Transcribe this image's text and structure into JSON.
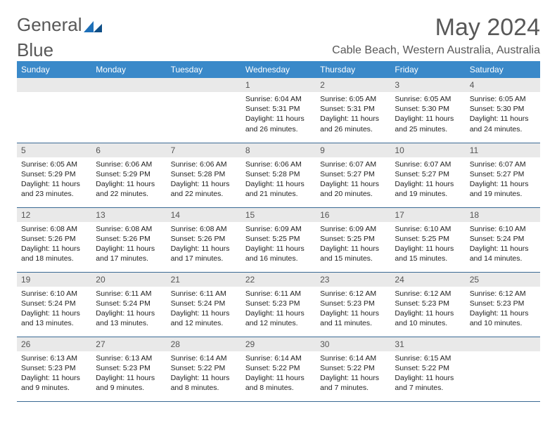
{
  "brand": {
    "part1": "General",
    "part2": "Blue"
  },
  "colors": {
    "header_bg": "#3a89c9",
    "header_text": "#ffffff",
    "daynum_bg": "#e9e9e9",
    "border": "#3a6a94",
    "title_color": "#585858",
    "logo_blue": "#1d6fb8"
  },
  "title": "May 2024",
  "location": "Cable Beach, Western Australia, Australia",
  "weekdays": [
    "Sunday",
    "Monday",
    "Tuesday",
    "Wednesday",
    "Thursday",
    "Friday",
    "Saturday"
  ],
  "weeks": [
    [
      null,
      null,
      null,
      {
        "day": "1",
        "sunrise": "Sunrise: 6:04 AM",
        "sunset": "Sunset: 5:31 PM",
        "daylight": "Daylight: 11 hours and 26 minutes."
      },
      {
        "day": "2",
        "sunrise": "Sunrise: 6:05 AM",
        "sunset": "Sunset: 5:31 PM",
        "daylight": "Daylight: 11 hours and 26 minutes."
      },
      {
        "day": "3",
        "sunrise": "Sunrise: 6:05 AM",
        "sunset": "Sunset: 5:30 PM",
        "daylight": "Daylight: 11 hours and 25 minutes."
      },
      {
        "day": "4",
        "sunrise": "Sunrise: 6:05 AM",
        "sunset": "Sunset: 5:30 PM",
        "daylight": "Daylight: 11 hours and 24 minutes."
      }
    ],
    [
      {
        "day": "5",
        "sunrise": "Sunrise: 6:05 AM",
        "sunset": "Sunset: 5:29 PM",
        "daylight": "Daylight: 11 hours and 23 minutes."
      },
      {
        "day": "6",
        "sunrise": "Sunrise: 6:06 AM",
        "sunset": "Sunset: 5:29 PM",
        "daylight": "Daylight: 11 hours and 22 minutes."
      },
      {
        "day": "7",
        "sunrise": "Sunrise: 6:06 AM",
        "sunset": "Sunset: 5:28 PM",
        "daylight": "Daylight: 11 hours and 22 minutes."
      },
      {
        "day": "8",
        "sunrise": "Sunrise: 6:06 AM",
        "sunset": "Sunset: 5:28 PM",
        "daylight": "Daylight: 11 hours and 21 minutes."
      },
      {
        "day": "9",
        "sunrise": "Sunrise: 6:07 AM",
        "sunset": "Sunset: 5:27 PM",
        "daylight": "Daylight: 11 hours and 20 minutes."
      },
      {
        "day": "10",
        "sunrise": "Sunrise: 6:07 AM",
        "sunset": "Sunset: 5:27 PM",
        "daylight": "Daylight: 11 hours and 19 minutes."
      },
      {
        "day": "11",
        "sunrise": "Sunrise: 6:07 AM",
        "sunset": "Sunset: 5:27 PM",
        "daylight": "Daylight: 11 hours and 19 minutes."
      }
    ],
    [
      {
        "day": "12",
        "sunrise": "Sunrise: 6:08 AM",
        "sunset": "Sunset: 5:26 PM",
        "daylight": "Daylight: 11 hours and 18 minutes."
      },
      {
        "day": "13",
        "sunrise": "Sunrise: 6:08 AM",
        "sunset": "Sunset: 5:26 PM",
        "daylight": "Daylight: 11 hours and 17 minutes."
      },
      {
        "day": "14",
        "sunrise": "Sunrise: 6:08 AM",
        "sunset": "Sunset: 5:26 PM",
        "daylight": "Daylight: 11 hours and 17 minutes."
      },
      {
        "day": "15",
        "sunrise": "Sunrise: 6:09 AM",
        "sunset": "Sunset: 5:25 PM",
        "daylight": "Daylight: 11 hours and 16 minutes."
      },
      {
        "day": "16",
        "sunrise": "Sunrise: 6:09 AM",
        "sunset": "Sunset: 5:25 PM",
        "daylight": "Daylight: 11 hours and 15 minutes."
      },
      {
        "day": "17",
        "sunrise": "Sunrise: 6:10 AM",
        "sunset": "Sunset: 5:25 PM",
        "daylight": "Daylight: 11 hours and 15 minutes."
      },
      {
        "day": "18",
        "sunrise": "Sunrise: 6:10 AM",
        "sunset": "Sunset: 5:24 PM",
        "daylight": "Daylight: 11 hours and 14 minutes."
      }
    ],
    [
      {
        "day": "19",
        "sunrise": "Sunrise: 6:10 AM",
        "sunset": "Sunset: 5:24 PM",
        "daylight": "Daylight: 11 hours and 13 minutes."
      },
      {
        "day": "20",
        "sunrise": "Sunrise: 6:11 AM",
        "sunset": "Sunset: 5:24 PM",
        "daylight": "Daylight: 11 hours and 13 minutes."
      },
      {
        "day": "21",
        "sunrise": "Sunrise: 6:11 AM",
        "sunset": "Sunset: 5:24 PM",
        "daylight": "Daylight: 11 hours and 12 minutes."
      },
      {
        "day": "22",
        "sunrise": "Sunrise: 6:11 AM",
        "sunset": "Sunset: 5:23 PM",
        "daylight": "Daylight: 11 hours and 12 minutes."
      },
      {
        "day": "23",
        "sunrise": "Sunrise: 6:12 AM",
        "sunset": "Sunset: 5:23 PM",
        "daylight": "Daylight: 11 hours and 11 minutes."
      },
      {
        "day": "24",
        "sunrise": "Sunrise: 6:12 AM",
        "sunset": "Sunset: 5:23 PM",
        "daylight": "Daylight: 11 hours and 10 minutes."
      },
      {
        "day": "25",
        "sunrise": "Sunrise: 6:12 AM",
        "sunset": "Sunset: 5:23 PM",
        "daylight": "Daylight: 11 hours and 10 minutes."
      }
    ],
    [
      {
        "day": "26",
        "sunrise": "Sunrise: 6:13 AM",
        "sunset": "Sunset: 5:23 PM",
        "daylight": "Daylight: 11 hours and 9 minutes."
      },
      {
        "day": "27",
        "sunrise": "Sunrise: 6:13 AM",
        "sunset": "Sunset: 5:23 PM",
        "daylight": "Daylight: 11 hours and 9 minutes."
      },
      {
        "day": "28",
        "sunrise": "Sunrise: 6:14 AM",
        "sunset": "Sunset: 5:22 PM",
        "daylight": "Daylight: 11 hours and 8 minutes."
      },
      {
        "day": "29",
        "sunrise": "Sunrise: 6:14 AM",
        "sunset": "Sunset: 5:22 PM",
        "daylight": "Daylight: 11 hours and 8 minutes."
      },
      {
        "day": "30",
        "sunrise": "Sunrise: 6:14 AM",
        "sunset": "Sunset: 5:22 PM",
        "daylight": "Daylight: 11 hours and 7 minutes."
      },
      {
        "day": "31",
        "sunrise": "Sunrise: 6:15 AM",
        "sunset": "Sunset: 5:22 PM",
        "daylight": "Daylight: 11 hours and 7 minutes."
      },
      null
    ]
  ]
}
